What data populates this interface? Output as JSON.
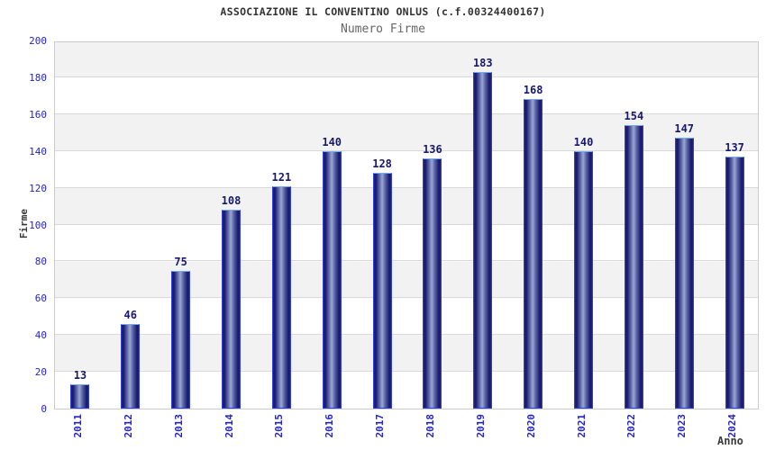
{
  "chart_data": {
    "type": "bar",
    "title": "ASSOCIAZIONE IL CONVENTINO ONLUS (c.f.00324400167)",
    "subtitle": "Numero Firme",
    "xlabel": "Anno",
    "ylabel": "Firme",
    "categories": [
      "2011",
      "2012",
      "2013",
      "2014",
      "2015",
      "2016",
      "2017",
      "2018",
      "2019",
      "2020",
      "2021",
      "2022",
      "2023",
      "2024"
    ],
    "values": [
      13,
      46,
      75,
      108,
      121,
      140,
      128,
      136,
      183,
      168,
      140,
      154,
      147,
      137
    ],
    "data_labels_shown": true,
    "ylim": [
      0,
      200
    ],
    "ytick_step": 20,
    "grid": "horizontal",
    "legend": "none",
    "plot_background": "alternating horizontal bands",
    "colors": {
      "tick_label": "#2424cd",
      "value_label": "#18186e",
      "bar_dark": "#17176a",
      "bar_light": "#9ea8d4",
      "bar_border": "#2f3fd4",
      "bar_top_border": "#74aaf2",
      "band_gray": "#f2f2f2",
      "band_white": "#ffffff",
      "gridline": "#d9d9d9",
      "axis_border": "#cccccc",
      "title_color": "#333333",
      "subtitle_color": "#666666",
      "axis_title_color": "#3a3a3a"
    }
  }
}
